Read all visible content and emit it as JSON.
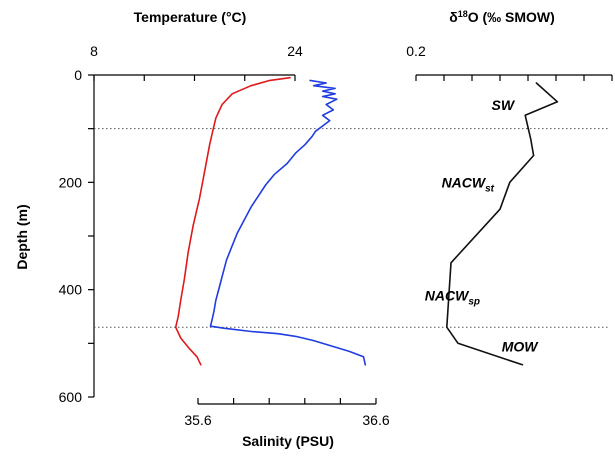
{
  "chart_data": {
    "type": "line",
    "y_axis": {
      "label": "Depth (m)",
      "ticks": [
        0,
        200,
        400,
        600
      ],
      "range": [
        0,
        600
      ],
      "inverted": true
    },
    "temperature_axis": {
      "label": "Temperature (°C)",
      "ticks": [
        "8",
        "24"
      ],
      "range": [
        8,
        24
      ],
      "position": "top"
    },
    "salinity_axis": {
      "label": "Salinity (PSU)",
      "ticks": [
        "35.6",
        "36.6"
      ],
      "range": [
        35.6,
        36.6
      ],
      "position": "bottom"
    },
    "d18o_axis": {
      "label_prefix": "δ",
      "label_sup": "18",
      "label_rest": "O (‰ SMOW)",
      "ticks": [
        "0.2"
      ],
      "range": [
        0.2,
        1.6
      ],
      "position": "top"
    },
    "boundaries": [
      100,
      470
    ],
    "water_masses": [
      {
        "name": "SW",
        "sub": "",
        "depth": 65,
        "d18o": 0.82
      },
      {
        "name": "NACW",
        "sub": "st",
        "depth": 210,
        "d18o": 0.57
      },
      {
        "name": "NACW",
        "sub": "sp",
        "depth": 420,
        "d18o": 0.46
      },
      {
        "name": "MOW",
        "sub": "",
        "depth": 515,
        "d18o": 0.94
      }
    ],
    "series": [
      {
        "color": "#e0191b",
        "axis": "temperature",
        "points": [
          [
            23.6,
            5
          ],
          [
            22.0,
            10
          ],
          [
            20.5,
            20
          ],
          [
            19.0,
            35
          ],
          [
            18.2,
            55
          ],
          [
            17.7,
            80
          ],
          [
            17.5,
            100
          ],
          [
            17.2,
            130
          ],
          [
            16.8,
            180
          ],
          [
            16.4,
            230
          ],
          [
            15.9,
            280
          ],
          [
            15.5,
            330
          ],
          [
            15.2,
            380
          ],
          [
            14.9,
            420
          ],
          [
            14.7,
            450
          ],
          [
            14.5,
            470
          ],
          [
            14.9,
            490
          ],
          [
            15.6,
            510
          ],
          [
            16.2,
            525
          ],
          [
            16.5,
            540
          ]
        ]
      },
      {
        "color": "#1f3de0",
        "axis": "salinity",
        "points": [
          [
            36.23,
            10
          ],
          [
            36.32,
            15
          ],
          [
            36.25,
            20
          ],
          [
            36.37,
            25
          ],
          [
            36.3,
            30
          ],
          [
            36.37,
            35
          ],
          [
            36.3,
            40
          ],
          [
            36.38,
            45
          ],
          [
            36.32,
            55
          ],
          [
            36.36,
            65
          ],
          [
            36.3,
            75
          ],
          [
            36.34,
            85
          ],
          [
            36.3,
            95
          ],
          [
            36.26,
            105
          ],
          [
            36.24,
            115
          ],
          [
            36.2,
            130
          ],
          [
            36.15,
            145
          ],
          [
            36.1,
            165
          ],
          [
            36.03,
            185
          ],
          [
            35.98,
            205
          ],
          [
            35.94,
            225
          ],
          [
            35.9,
            245
          ],
          [
            35.86,
            270
          ],
          [
            35.82,
            295
          ],
          [
            35.79,
            320
          ],
          [
            35.76,
            345
          ],
          [
            35.74,
            370
          ],
          [
            35.72,
            395
          ],
          [
            35.7,
            420
          ],
          [
            35.69,
            440
          ],
          [
            35.68,
            455
          ],
          [
            35.67,
            468
          ],
          [
            35.75,
            472
          ],
          [
            35.9,
            478
          ],
          [
            36.05,
            482
          ],
          [
            36.15,
            487
          ],
          [
            36.25,
            495
          ],
          [
            36.35,
            505
          ],
          [
            36.45,
            515
          ],
          [
            36.53,
            525
          ],
          [
            36.54,
            540
          ]
        ]
      },
      {
        "color": "#111111",
        "axis": "d18o",
        "points": [
          [
            1.06,
            15
          ],
          [
            1.21,
            50
          ],
          [
            0.98,
            75
          ],
          [
            1.02,
            120
          ],
          [
            1.04,
            150
          ],
          [
            0.87,
            200
          ],
          [
            0.8,
            250
          ],
          [
            0.45,
            350
          ],
          [
            0.42,
            470
          ],
          [
            0.5,
            500
          ],
          [
            0.96,
            540
          ]
        ]
      }
    ]
  }
}
